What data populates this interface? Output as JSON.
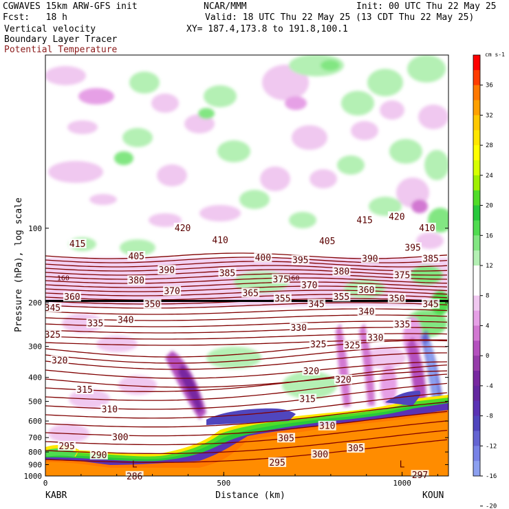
{
  "header": {
    "left_line1": "CGWAVES 15km ARW-GFS init",
    "left_line2": "Fcst:   18 h",
    "field1": "Vertical velocity",
    "field2": "Boundary Layer Tracer",
    "field3": "Potential Temperature",
    "center_line1": "NCAR/MMM",
    "init": "Init: 00 UTC Thu 22 May 25",
    "valid": "Valid: 18 UTC Thu 22 May 25 (13 CDT Thu 22 May 25)",
    "xy": "XY= 187.4,173.8 to 191.8,100.1"
  },
  "chart_data": {
    "type": "cross-section",
    "xlabel": "Distance (km)",
    "ylabel": "Pressure (hPa), log scale",
    "xlim": [
      0,
      1130
    ],
    "ylim": [
      1000,
      20
    ],
    "x_ticks": [
      0,
      500,
      1000
    ],
    "y_ticks": [
      100,
      200,
      300,
      400,
      500,
      600,
      700,
      800,
      900,
      1000
    ],
    "left_station": "KABR",
    "right_station": "KOUN",
    "colorbar": {
      "units": "cm s-1",
      "tick_labels": [
        "36",
        "32",
        "28",
        "24",
        "20",
        "16",
        "12",
        "8",
        "4",
        "0",
        "-4",
        "-8",
        "-12",
        "-16",
        "-20"
      ],
      "colors": [
        "#ff0000",
        "#ff3c00",
        "#ff7800",
        "#ffa000",
        "#ffc800",
        "#ffe600",
        "#ffff00",
        "#d7ff00",
        "#a0f000",
        "#50dc28",
        "#28c83c",
        "#50dc50",
        "#82e682",
        "#b4f0b4",
        "#ffffff",
        "#ffffff",
        "#f0c8f0",
        "#e6a0e6",
        "#d278d2",
        "#b450be",
        "#963caa",
        "#7828a0",
        "#6428a0",
        "#5a32b4",
        "#5046be",
        "#6464d2",
        "#7882e6",
        "#8ca0f0"
      ]
    },
    "theta_labels": [
      {
        "text": "415",
        "x": 90,
        "p": 116
      },
      {
        "text": "420",
        "x": 385,
        "p": 100
      },
      {
        "text": "410",
        "x": 490,
        "p": 112
      },
      {
        "text": "405",
        "x": 255,
        "p": 130
      },
      {
        "text": "400",
        "x": 610,
        "p": 132
      },
      {
        "text": "405",
        "x": 790,
        "p": 113
      },
      {
        "text": "415",
        "x": 895,
        "p": 93
      },
      {
        "text": "420",
        "x": 985,
        "p": 90
      },
      {
        "text": "410",
        "x": 1070,
        "p": 100
      },
      {
        "text": "390",
        "x": 340,
        "p": 148
      },
      {
        "text": "395",
        "x": 715,
        "p": 135
      },
      {
        "text": "390",
        "x": 910,
        "p": 133
      },
      {
        "text": "395",
        "x": 1030,
        "p": 120
      },
      {
        "text": "385",
        "x": 510,
        "p": 152
      },
      {
        "text": "380",
        "x": 830,
        "p": 150
      },
      {
        "text": "385",
        "x": 1080,
        "p": 133
      },
      {
        "text": "380",
        "x": 255,
        "p": 163
      },
      {
        "text": "375",
        "x": 660,
        "p": 161
      },
      {
        "text": "375",
        "x": 1000,
        "p": 155
      },
      {
        "text": "370",
        "x": 355,
        "p": 180
      },
      {
        "text": "370",
        "x": 740,
        "p": 170
      },
      {
        "text": "365",
        "x": 575,
        "p": 183
      },
      {
        "text": "360",
        "x": 75,
        "p": 190
      },
      {
        "text": "360",
        "x": 900,
        "p": 178
      },
      {
        "text": "355",
        "x": 665,
        "p": 193
      },
      {
        "text": "355",
        "x": 830,
        "p": 190
      },
      {
        "text": "350",
        "x": 300,
        "p": 203
      },
      {
        "text": "350",
        "x": 985,
        "p": 193
      },
      {
        "text": "345",
        "x": 20,
        "p": 210
      },
      {
        "text": "345",
        "x": 760,
        "p": 203
      },
      {
        "text": "345",
        "x": 1080,
        "p": 203
      },
      {
        "text": "340",
        "x": 225,
        "p": 235
      },
      {
        "text": "340",
        "x": 900,
        "p": 218
      },
      {
        "text": "335",
        "x": 140,
        "p": 243
      },
      {
        "text": "335",
        "x": 1000,
        "p": 245
      },
      {
        "text": "330",
        "x": 710,
        "p": 253
      },
      {
        "text": "330",
        "x": 925,
        "p": 278
      },
      {
        "text": "325",
        "x": 20,
        "p": 270
      },
      {
        "text": "325",
        "x": 765,
        "p": 295
      },
      {
        "text": "325",
        "x": 860,
        "p": 298
      },
      {
        "text": "320",
        "x": 40,
        "p": 343
      },
      {
        "text": "320",
        "x": 745,
        "p": 378
      },
      {
        "text": "320",
        "x": 835,
        "p": 410
      },
      {
        "text": "315",
        "x": 110,
        "p": 450
      },
      {
        "text": "315",
        "x": 735,
        "p": 490
      },
      {
        "text": "310",
        "x": 180,
        "p": 540
      },
      {
        "text": "310",
        "x": 790,
        "p": 630
      },
      {
        "text": "305",
        "x": 675,
        "p": 705
      },
      {
        "text": "305",
        "x": 870,
        "p": 775
      },
      {
        "text": "300",
        "x": 210,
        "p": 700
      },
      {
        "text": "300",
        "x": 770,
        "p": 820
      },
      {
        "text": "295",
        "x": 60,
        "p": 760
      },
      {
        "text": "295",
        "x": 650,
        "p": 885
      },
      {
        "text": "290",
        "x": 150,
        "p": 825
      },
      {
        "text": "286",
        "x": 250,
        "p": 1005
      },
      {
        "text": "297",
        "x": 1050,
        "p": 995
      }
    ],
    "extra_labels": [
      {
        "text": "L",
        "x": 250,
        "p": 900
      },
      {
        "text": "L",
        "x": 1000,
        "p": 900
      },
      {
        "text": "160",
        "x": 50,
        "p": 158
      },
      {
        "text": "160",
        "x": 695,
        "p": 158
      }
    ]
  }
}
